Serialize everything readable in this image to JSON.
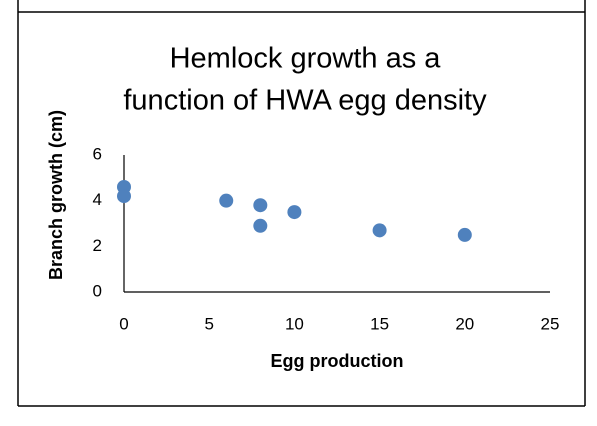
{
  "chart_data": {
    "type": "scatter",
    "title": [
      "Hemlock growth as a",
      "function of HWA egg density"
    ],
    "x_label": "Egg production",
    "y_label": "Branch growth (cm)",
    "series": [
      {
        "color": "#4f81bd",
        "x": [
          0,
          0,
          6,
          8,
          8,
          10,
          15,
          20
        ],
        "values": [
          4.6,
          4.2,
          4.0,
          3.8,
          2.9,
          3.5,
          2.7,
          2.5
        ]
      }
    ],
    "xlim": [
      0,
      25
    ],
    "xticks": [
      0,
      5,
      10,
      15,
      20,
      25
    ],
    "ylim": [
      0,
      6
    ],
    "yticks": [
      0,
      2,
      4,
      6
    ],
    "grid": false
  }
}
